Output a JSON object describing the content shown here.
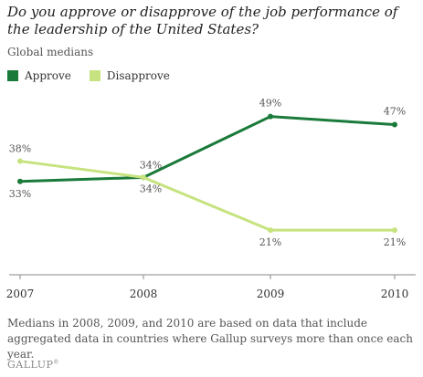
{
  "title": "Do you approve or disapprove of the job performance of the leadership of the United States?",
  "subtitle": "Global medians",
  "legend": {
    "approve": "Approve",
    "disapprove": "Disapprove"
  },
  "colors": {
    "approve": "#1a7a3a",
    "disapprove": "#c6e37f",
    "axis": "#888888",
    "label": "#555555"
  },
  "footnote": "Medians in 2008, 2009, and 2010 are based on data that include aggregated data in countries where Gallup surveys more than once each year.",
  "logo": "GALLUP",
  "chart_data": {
    "type": "line",
    "title": "",
    "xlabel": "",
    "ylabel": "",
    "x": [
      "2007",
      "2008",
      "2009",
      "2010"
    ],
    "ylim": [
      10,
      55
    ],
    "grid": false,
    "legend_position": "top-left",
    "series": [
      {
        "name": "Approve",
        "key": "approve",
        "values": [
          33,
          34,
          49,
          47
        ],
        "labels": [
          "33%",
          "34%",
          "49%",
          "47%"
        ]
      },
      {
        "name": "Disapprove",
        "key": "disapprove",
        "values": [
          38,
          34,
          21,
          21
        ],
        "labels": [
          "38%",
          "34%",
          "21%",
          "21%"
        ]
      }
    ]
  }
}
